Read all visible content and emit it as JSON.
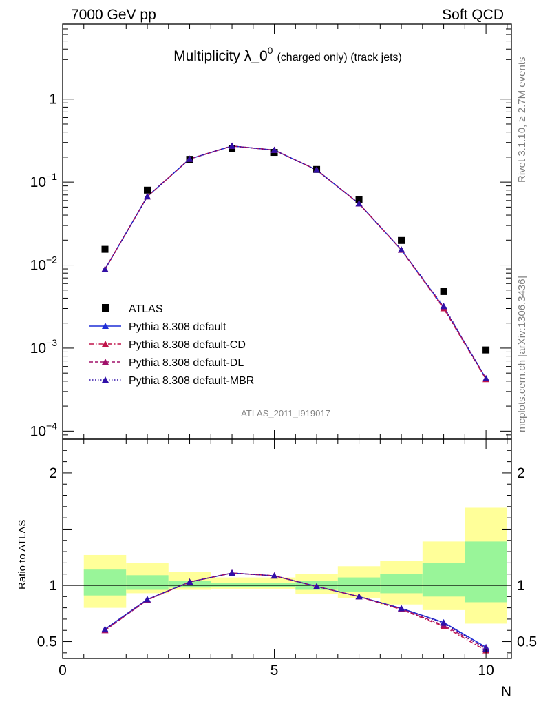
{
  "header": {
    "left": "7000 GeV pp",
    "right": "Soft QCD"
  },
  "side_labels": {
    "rivet": "Rivet 3.1.10, ≥ 2.7M events",
    "mcplots": "mcplots.cern.ch [arXiv:1306.3436]"
  },
  "analysis_id": "ATLAS_2011_I919017",
  "colors": {
    "data": "#000000",
    "default": "#1f2fd6",
    "default_cd": "#c0144a",
    "default_dl": "#a0106a",
    "default_mbr": "#3010a8",
    "band_inner": "#99f599",
    "band_outer": "#ffff99"
  },
  "chart_data": [
    {
      "type": "scatter",
      "title_main": "Multiplicity λ_0",
      "title_sup": "0",
      "title_tail": "(charged only) (track jets)",
      "xlabel": "N",
      "ylabel": "",
      "yscale": "log",
      "xlim": [
        0,
        10.6
      ],
      "ylim": [
        8e-05,
        8
      ],
      "y_ticks": [
        {
          "v": 1,
          "base": "1",
          "exp": ""
        },
        {
          "v": 0.1,
          "base": "10",
          "exp": "−1"
        },
        {
          "v": 0.01,
          "base": "10",
          "exp": "−2"
        },
        {
          "v": 0.001,
          "base": "10",
          "exp": "−3"
        },
        {
          "v": 0.0001,
          "base": "10",
          "exp": "−4"
        }
      ],
      "legend_position": "left",
      "series": [
        {
          "name": "ATLAS",
          "key": "data",
          "style": "square",
          "x": [
            1,
            2,
            3,
            4,
            5,
            6,
            7,
            8,
            9,
            10
          ],
          "y": [
            0.0155,
            0.08,
            0.188,
            0.255,
            0.228,
            0.142,
            0.062,
            0.0198,
            0.0048,
            0.00095
          ]
        },
        {
          "name": "Pythia 8.308 default",
          "key": "default",
          "style": "solid",
          "x": [
            1,
            2,
            3,
            4,
            5,
            6,
            7,
            8,
            9,
            10
          ],
          "y": [
            0.0089,
            0.067,
            0.19,
            0.272,
            0.243,
            0.14,
            0.055,
            0.0153,
            0.0031,
            0.00043
          ]
        },
        {
          "name": "Pythia 8.308 default-CD",
          "key": "default_cd",
          "style": "dashdot",
          "x": [
            1,
            2,
            3,
            4,
            5,
            6,
            7,
            8,
            9,
            10
          ],
          "y": [
            0.0089,
            0.067,
            0.19,
            0.272,
            0.243,
            0.14,
            0.055,
            0.0152,
            0.003,
            0.00042
          ]
        },
        {
          "name": "Pythia 8.308 default-DL",
          "key": "default_dl",
          "style": "dashed",
          "x": [
            1,
            2,
            3,
            4,
            5,
            6,
            7,
            8,
            9,
            10
          ],
          "y": [
            0.0089,
            0.067,
            0.19,
            0.272,
            0.243,
            0.14,
            0.055,
            0.0153,
            0.0031,
            0.00043
          ]
        },
        {
          "name": "Pythia 8.308 default-MBR",
          "key": "default_mbr",
          "style": "dotted",
          "x": [
            1,
            2,
            3,
            4,
            5,
            6,
            7,
            8,
            9,
            10
          ],
          "y": [
            0.0089,
            0.067,
            0.19,
            0.272,
            0.243,
            0.14,
            0.055,
            0.0153,
            0.0032,
            0.00043
          ]
        }
      ]
    },
    {
      "type": "line",
      "ylabel": "Ratio to ATLAS",
      "xlabel": "N",
      "xlim": [
        0,
        10.6
      ],
      "ylim": [
        0.35,
        2.3
      ],
      "x_ticks": [
        0,
        5,
        10
      ],
      "y_ticks": [
        0.5,
        1,
        2
      ],
      "bands": {
        "x_edges": [
          0.5,
          1.5,
          2.5,
          3.5,
          4.5,
          5.5,
          6.5,
          7.5,
          8.5,
          9.5,
          10.5
        ],
        "inner_low": [
          0.91,
          0.96,
          0.98,
          0.985,
          0.985,
          0.96,
          0.945,
          0.93,
          0.9,
          0.85
        ],
        "inner_high": [
          1.14,
          1.09,
          1.04,
          1.02,
          1.02,
          1.04,
          1.07,
          1.1,
          1.2,
          1.39
        ],
        "outer_low": [
          0.8,
          0.93,
          0.96,
          0.97,
          0.97,
          0.92,
          0.89,
          0.83,
          0.78,
          0.66
        ],
        "outer_high": [
          1.27,
          1.2,
          1.12,
          1.07,
          1.07,
          1.1,
          1.17,
          1.22,
          1.39,
          1.69
        ]
      },
      "series": [
        {
          "name": "Pythia 8.308 default",
          "key": "default",
          "style": "solid",
          "x": [
            1,
            2,
            3,
            4,
            5,
            6,
            7,
            8,
            9,
            10
          ],
          "y": [
            0.61,
            0.875,
            1.03,
            1.11,
            1.085,
            0.99,
            0.9,
            0.795,
            0.67,
            0.45
          ]
        },
        {
          "name": "Pythia 8.308 default-CD",
          "key": "default_cd",
          "style": "dashdot",
          "x": [
            1,
            2,
            3,
            4,
            5,
            6,
            7,
            8,
            9,
            10
          ],
          "y": [
            0.6,
            0.87,
            1.03,
            1.11,
            1.085,
            0.99,
            0.9,
            0.785,
            0.635,
            0.42
          ]
        },
        {
          "name": "Pythia 8.308 default-DL",
          "key": "default_dl",
          "style": "dashed",
          "x": [
            1,
            2,
            3,
            4,
            5,
            6,
            7,
            8,
            9,
            10
          ],
          "y": [
            0.6,
            0.87,
            1.03,
            1.11,
            1.085,
            0.99,
            0.9,
            0.79,
            0.645,
            0.44
          ]
        },
        {
          "name": "Pythia 8.308 default-MBR",
          "key": "default_mbr",
          "style": "dotted",
          "x": [
            1,
            2,
            3,
            4,
            5,
            6,
            7,
            8,
            9,
            10
          ],
          "y": [
            0.61,
            0.875,
            1.03,
            1.11,
            1.085,
            0.99,
            0.9,
            0.795,
            0.665,
            0.435
          ]
        }
      ]
    }
  ]
}
